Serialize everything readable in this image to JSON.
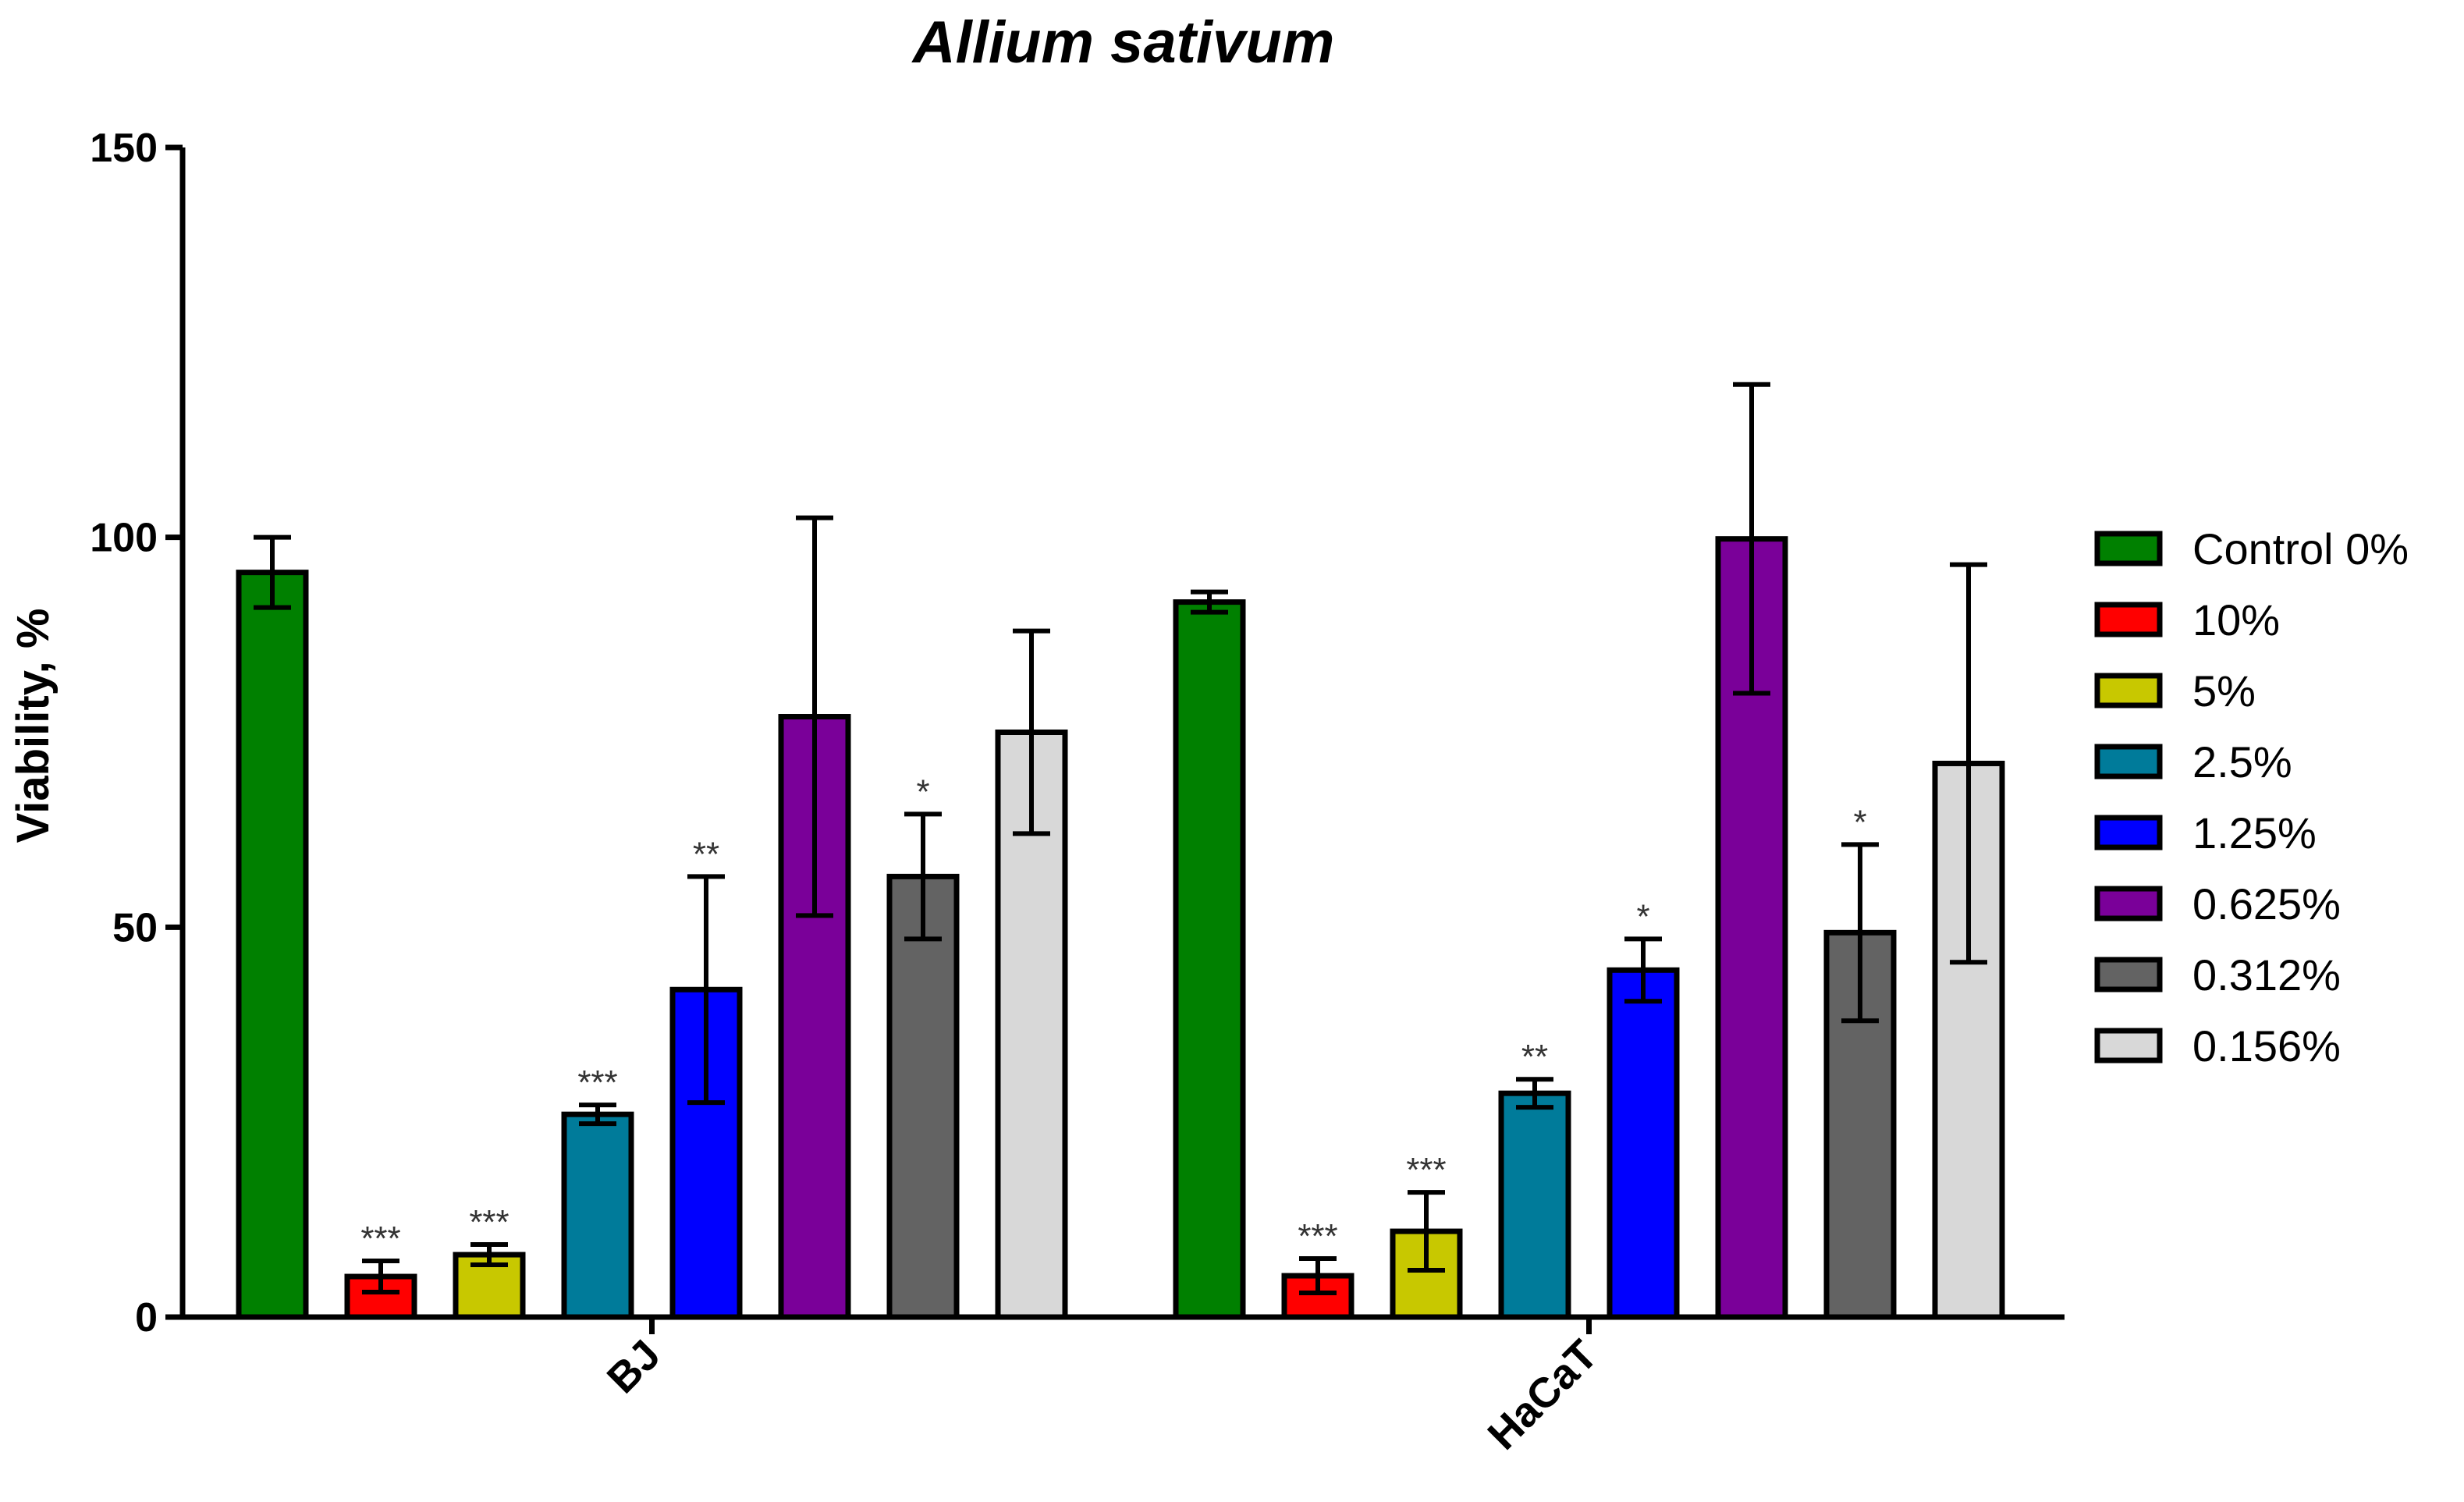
{
  "chart_data": {
    "type": "bar",
    "title": "Allium sativum",
    "xlabel": "",
    "ylabel": "Viability, %",
    "ylim": [
      0,
      150
    ],
    "yticks": [
      0,
      50,
      100,
      150
    ],
    "grid": false,
    "legend_position": "right",
    "categories": [
      "BJ",
      "HaCaT"
    ],
    "series": [
      {
        "name": "Control 0%",
        "color": "#008000",
        "values": [
          95.5,
          91.7
        ],
        "errors": [
          4.5,
          1.3
        ],
        "significance": [
          "",
          ""
        ]
      },
      {
        "name": "10%",
        "color": "#ff0000",
        "values": [
          5.2,
          5.3
        ],
        "errors": [
          2.0,
          2.2
        ],
        "significance": [
          "***",
          "***"
        ]
      },
      {
        "name": "5%",
        "color": "#c8c800",
        "values": [
          8.0,
          11.0
        ],
        "errors": [
          1.3,
          5.0
        ],
        "significance": [
          "***",
          "***"
        ]
      },
      {
        "name": "2.5%",
        "color": "#007b9a",
        "values": [
          26.0,
          28.7
        ],
        "errors": [
          1.2,
          1.8
        ],
        "significance": [
          "***",
          "**"
        ]
      },
      {
        "name": "1.25%",
        "color": "#0000ff",
        "values": [
          42.0,
          44.5
        ],
        "errors": [
          14.5,
          4.0
        ],
        "significance": [
          "**",
          "*"
        ]
      },
      {
        "name": "0.625%",
        "color": "#7a0099",
        "values": [
          77.0,
          99.8
        ],
        "errors": [
          25.5,
          19.8
        ],
        "significance": [
          "",
          ""
        ]
      },
      {
        "name": "0.312%",
        "color": "#636363",
        "values": [
          56.5,
          49.3
        ],
        "errors": [
          8.0,
          11.3
        ],
        "significance": [
          "*",
          "*"
        ]
      },
      {
        "name": "0.156%",
        "color": "#d8d8d8",
        "values": [
          75.0,
          71.0
        ],
        "errors": [
          13.0,
          25.5
        ],
        "significance": [
          "",
          ""
        ]
      }
    ]
  }
}
